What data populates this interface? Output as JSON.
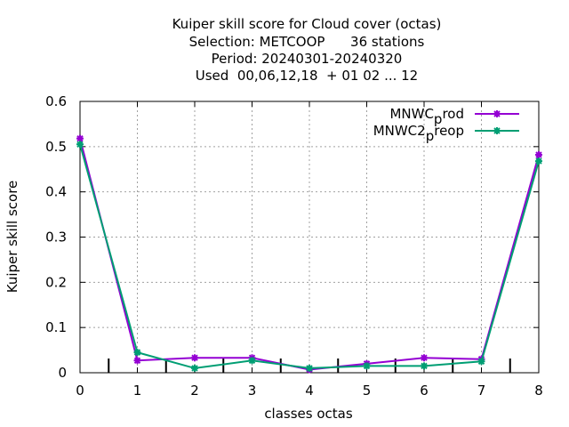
{
  "chart_data": {
    "type": "line",
    "title_lines": [
      "Kuiper skill score  for Cloud cover (octas)",
      "Selection: METCOOP      36 stations",
      "Period: 20240301-20240320",
      "Used  00,06,12,18  + 01 02 ... 12"
    ],
    "xlabel": "classes octas",
    "ylabel": "Kuiper skill score",
    "xlim": [
      0,
      8
    ],
    "ylim": [
      0,
      0.6
    ],
    "xticks": [
      0,
      1,
      2,
      3,
      4,
      5,
      6,
      7,
      8
    ],
    "yticks": [
      0,
      0.1,
      0.2,
      0.3,
      0.4,
      0.5,
      0.6
    ],
    "ytick_labels": [
      "0",
      "0.1",
      "0.2",
      "0.3",
      "0.4",
      "0.5",
      "0.6"
    ],
    "grid": true,
    "legend_position": "top-right",
    "class_boundary_marks": [
      0.5,
      1.5,
      2.5,
      3.5,
      4.5,
      5.5,
      6.5,
      7.5
    ],
    "series": [
      {
        "legend_main": "MNWC",
        "legend_sub": "p",
        "legend_tail": "rod",
        "color": "#9400d3",
        "x": [
          0,
          1,
          2,
          3,
          4,
          5,
          6,
          7,
          8
        ],
        "values": [
          0.518,
          0.027,
          0.033,
          0.033,
          0.007,
          0.02,
          0.033,
          0.03,
          0.482
        ]
      },
      {
        "legend_main": "MNWC2",
        "legend_sub": "p",
        "legend_tail": "reop",
        "color": "#009e73",
        "x": [
          0,
          1,
          2,
          3,
          4,
          5,
          6,
          7,
          8
        ],
        "values": [
          0.505,
          0.045,
          0.01,
          0.027,
          0.01,
          0.015,
          0.015,
          0.025,
          0.468
        ]
      }
    ]
  }
}
